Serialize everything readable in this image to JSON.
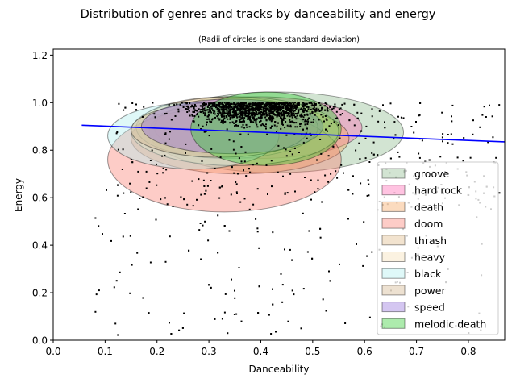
{
  "chart_data": {
    "type": "scatter",
    "title": "Distribution of genres and tracks by danceability and energy",
    "subtitle": "(Radii of circles is one standard deviation)",
    "xlabel": "Danceability",
    "ylabel": "Energy",
    "xlim": [
      0.0,
      0.87
    ],
    "ylim": [
      0.0,
      1.225
    ],
    "xticks": [
      "0.0",
      "0.1",
      "0.2",
      "0.3",
      "0.4",
      "0.5",
      "0.6",
      "0.7",
      "0.8"
    ],
    "yticks": [
      "0.0",
      "0.2",
      "0.4",
      "0.6",
      "0.8",
      "1.0",
      "1.2"
    ],
    "grid": false,
    "legend_position": "lower-right",
    "regression_line": {
      "color": "#0000ff",
      "x": [
        0.055,
        0.87
      ],
      "y": [
        0.905,
        0.835
      ]
    },
    "ellipses": [
      {
        "name": "groove",
        "cx": 0.43,
        "cy": 0.875,
        "rx": 0.245,
        "ry": 0.17,
        "color": "#8fbc8f"
      },
      {
        "name": "hard rock",
        "cx": 0.395,
        "cy": 0.895,
        "rx": 0.2,
        "ry": 0.13,
        "color": "#ff69b4"
      },
      {
        "name": "death",
        "cx": 0.36,
        "cy": 0.85,
        "rx": 0.21,
        "ry": 0.15,
        "color": "#f4a460"
      },
      {
        "name": "doom",
        "cx": 0.33,
        "cy": 0.76,
        "rx": 0.225,
        "ry": 0.22,
        "color": "#fa8072"
      },
      {
        "name": "thrash",
        "cx": 0.335,
        "cy": 0.895,
        "rx": 0.175,
        "ry": 0.13,
        "color": "#deb887"
      },
      {
        "name": "heavy",
        "cx": 0.35,
        "cy": 0.88,
        "rx": 0.2,
        "ry": 0.145,
        "color": "#f5deb3"
      },
      {
        "name": "black",
        "cx": 0.27,
        "cy": 0.86,
        "rx": 0.165,
        "ry": 0.14,
        "color": "#afeeee"
      },
      {
        "name": "power",
        "cx": 0.32,
        "cy": 0.885,
        "rx": 0.17,
        "ry": 0.115,
        "color": "#d2b48c"
      },
      {
        "name": "speed",
        "cx": 0.345,
        "cy": 0.9,
        "rx": 0.175,
        "ry": 0.115,
        "color": "#9370db"
      },
      {
        "name": "melodic death",
        "cx": 0.41,
        "cy": 0.89,
        "rx": 0.145,
        "ry": 0.155,
        "color": "#32cd32"
      }
    ],
    "legend": [
      "groove",
      "hard rock",
      "death",
      "doom",
      "thrash",
      "heavy",
      "black",
      "power",
      "speed",
      "melodic death"
    ],
    "scatter_color": "#000000",
    "point_count": 2000
  }
}
